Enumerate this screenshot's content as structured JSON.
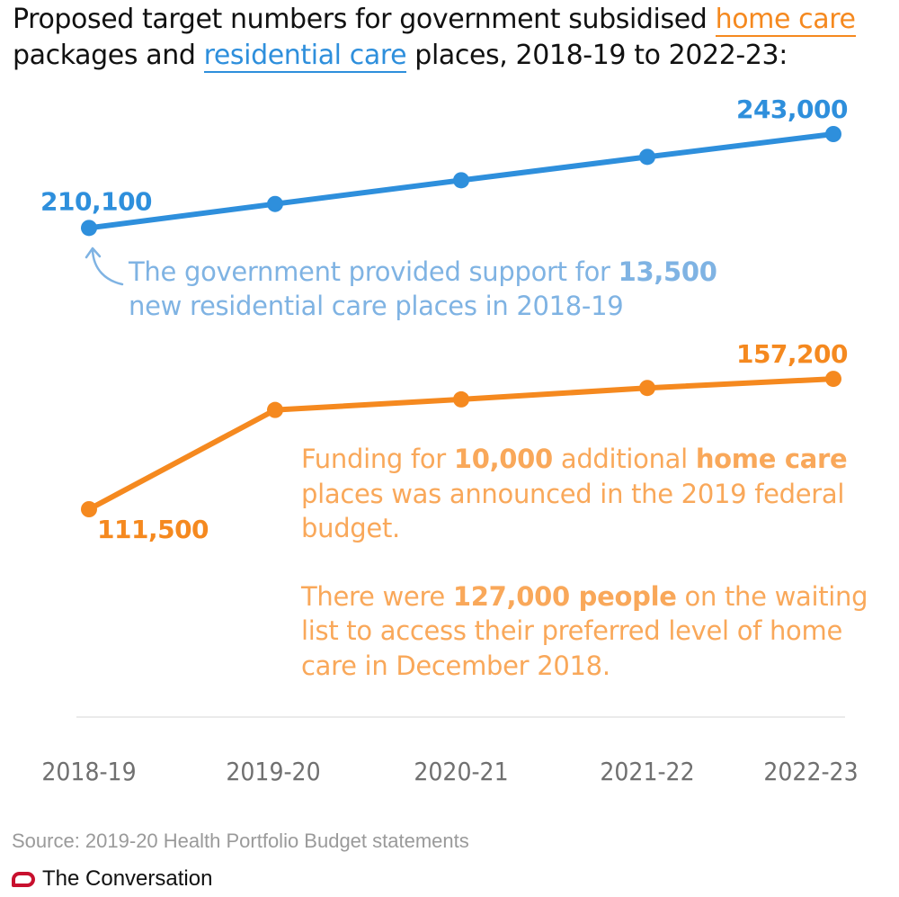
{
  "header": {
    "title_part1": "Proposed target numbers for government subsidised ",
    "title_home": "home care",
    "title_part2": " packages and ",
    "title_res": "residential care",
    "title_part3": " places, 2018-19 to 2022-23:"
  },
  "chart_data": {
    "type": "line",
    "categories": [
      "2018-19",
      "2019-20",
      "2020-21",
      "2021-22",
      "2022-23"
    ],
    "series": [
      {
        "name": "residential care",
        "color": "#2e8fdc",
        "values": [
          210100,
          218500,
          226800,
          235000,
          243000
        ],
        "labels": [
          "210,100",
          "",
          "",
          "",
          "243,000"
        ]
      },
      {
        "name": "home care",
        "color": "#f5891f",
        "values": [
          111500,
          146300,
          150000,
          154000,
          157200
        ],
        "labels": [
          "111,500",
          "",
          "",
          "",
          "157,200"
        ]
      }
    ],
    "grid": false,
    "annotations": {
      "residential": {
        "line1_a": "The government provided support for ",
        "line1_b": "13,500",
        "line2": "new residential care places in 2018-19"
      },
      "home": {
        "p1_line1_a": "Funding for ",
        "p1_line1_b": "10,000",
        "p1_line1_c": " additional ",
        "p1_line1_d": "home care",
        "p1_line2": "places was announced in the 2019 federal",
        "p1_line3": "budget.",
        "p2_line1_a": "There were ",
        "p2_line1_b": "127,000 people",
        "p2_line1_c": " on the waiting",
        "p2_line2": "list to access their preferred level of home",
        "p2_line3": "care in December 2018."
      }
    },
    "colors": {
      "residential_annotation": "#7fb3e3",
      "home_annotation": "#f9a85a",
      "axis_text": "#707070",
      "baseline": "#e4e4e4"
    }
  },
  "footer": {
    "source": "Source: 2019-20 Health Portfolio Budget statements",
    "brand": "The Conversation"
  }
}
